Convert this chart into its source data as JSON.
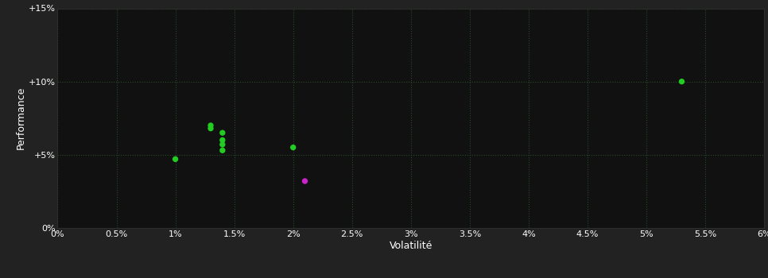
{
  "background_color": "#222222",
  "plot_bg_color": "#111111",
  "grid_color": "#2a4a2a",
  "text_color": "#ffffff",
  "xlabel": "Volatilité",
  "ylabel": "Performance",
  "xlim": [
    0.0,
    0.06
  ],
  "ylim": [
    0.0,
    0.15
  ],
  "xtick_values": [
    0.0,
    0.005,
    0.01,
    0.015,
    0.02,
    0.025,
    0.03,
    0.035,
    0.04,
    0.045,
    0.05,
    0.055,
    0.06
  ],
  "ytick_values": [
    0.0,
    0.05,
    0.1,
    0.15
  ],
  "green_points": [
    [
      0.01,
      0.047
    ],
    [
      0.013,
      0.07
    ],
    [
      0.013,
      0.068
    ],
    [
      0.014,
      0.065
    ],
    [
      0.014,
      0.06
    ],
    [
      0.014,
      0.057
    ],
    [
      0.014,
      0.053
    ],
    [
      0.02,
      0.055
    ],
    [
      0.053,
      0.1
    ]
  ],
  "magenta_points": [
    [
      0.021,
      0.032
    ]
  ],
  "green_color": "#22cc22",
  "magenta_color": "#cc22cc",
  "marker_size": 28,
  "font_size": 8,
  "label_font_size": 9
}
